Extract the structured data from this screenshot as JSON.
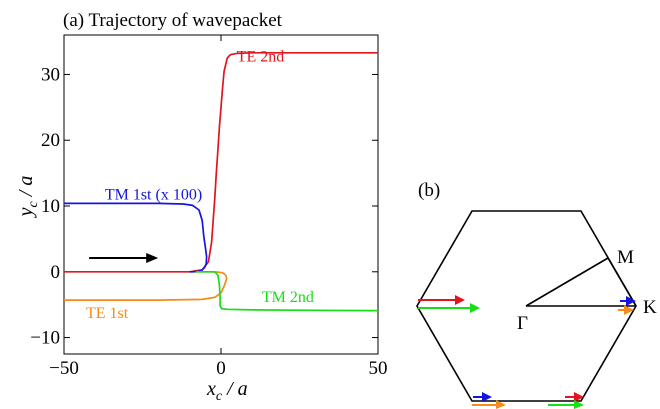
{
  "panel_a": {
    "title": "(a) Trajectory of wavepacket",
    "chart_data": {
      "type": "line",
      "title": "(a) Trajectory of wavepacket",
      "xlabel_main": "x",
      "xlabel_sub": "c",
      "xlabel_tail": " / a",
      "ylabel_main": "y",
      "ylabel_sub": "c",
      "ylabel_tail": " / a",
      "xlim": [
        -50,
        50
      ],
      "ylim": [
        -12.5,
        36
      ],
      "xticks": [
        -50,
        0,
        50
      ],
      "xtick_labels": [
        "−50",
        "0",
        "50"
      ],
      "yticks": [
        -10,
        0,
        10,
        20,
        30
      ],
      "ytick_labels": [
        "−10",
        "0",
        "10",
        "20",
        "30"
      ],
      "grid": false,
      "direction_arrow": {
        "x": [
          -42,
          -20
        ],
        "y": 2.1,
        "color": "#000000"
      },
      "series": [
        {
          "name": "TE 2nd",
          "color": "#e0151d",
          "label_at": [
            5,
            32
          ],
          "x": [
            -50,
            -10,
            -6,
            -4,
            -3,
            -2,
            -1.5,
            -1,
            -0.5,
            0,
            0.5,
            1,
            2,
            3,
            5,
            10,
            20,
            30,
            50
          ],
          "y": [
            0,
            0,
            0.3,
            1.5,
            4.5,
            11,
            15,
            18.5,
            22,
            25,
            28,
            30.5,
            32.5,
            33,
            33.2,
            33.3,
            33.3,
            33.3,
            33.3
          ]
        },
        {
          "name": "TM 1st (x 100)",
          "color": "#1515e0",
          "label_at": [
            -37,
            11
          ],
          "x": [
            -50,
            -20,
            -12,
            -9,
            -7,
            -6,
            -5.5,
            -5,
            -4.6,
            -4.7,
            -5.3,
            -6.2,
            -7.5,
            -9,
            -10
          ],
          "y": [
            10.4,
            10.4,
            10.3,
            10.1,
            9.4,
            7.8,
            5.5,
            3.8,
            2.3,
            1.2,
            0.6,
            0.2,
            0.05,
            0,
            0
          ]
        },
        {
          "name": "TE 1st",
          "color": "#f28c1a",
          "label_at": [
            -43,
            -7
          ],
          "x": [
            -50,
            -20,
            -6,
            -2,
            0,
            1,
            1.8,
            1.5,
            0.5,
            -1,
            -3,
            -6,
            -8
          ],
          "y": [
            -4.3,
            -4.3,
            -4.2,
            -3.9,
            -3.2,
            -2.2,
            -1,
            -0.5,
            -0.15,
            -0.05,
            0,
            0,
            0
          ]
        },
        {
          "name": "TM 2nd",
          "color": "#16df16",
          "label_at": [
            13,
            -4.6
          ],
          "x": [
            -8,
            -4,
            -2,
            -1,
            -0.5,
            -0.3,
            -0.3,
            0.2,
            2,
            10,
            30,
            50
          ],
          "y": [
            0,
            0,
            0,
            -0.5,
            -2,
            -4,
            -5.2,
            -5.6,
            -5.7,
            -5.8,
            -5.85,
            -5.9
          ]
        }
      ]
    }
  },
  "panel_b": {
    "label": "(b)",
    "points": {
      "gamma": "Γ",
      "m": "M",
      "k": "K"
    },
    "arrow_colors": {
      "red": "#e0151d",
      "green": "#16df16",
      "blue": "#1515e0",
      "orange": "#f28c1a"
    }
  }
}
